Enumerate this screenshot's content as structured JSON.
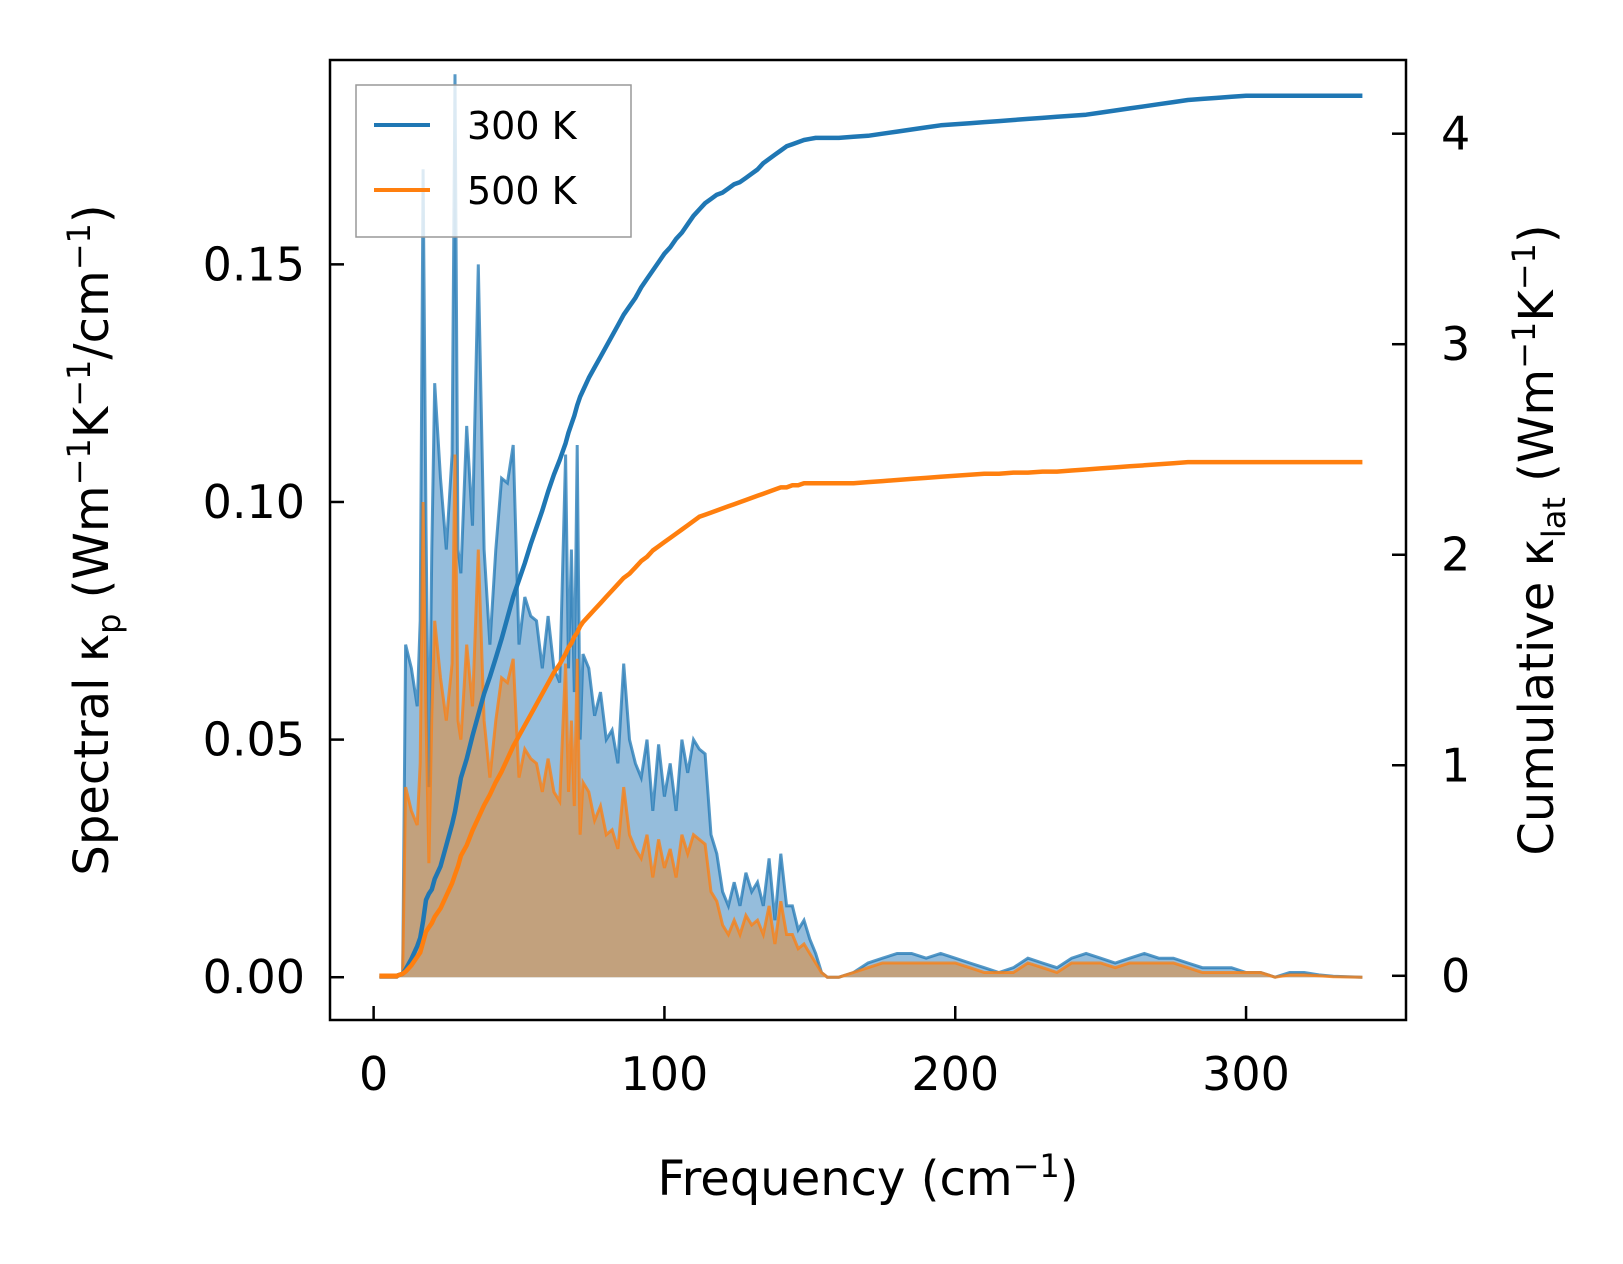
{
  "chart_data": {
    "type": "line",
    "xlabel_parts": {
      "base": "Frequency (cm",
      "sup": "−1",
      "end": ")"
    },
    "ylabel_left_parts": {
      "a": "Spectral κ",
      "sub": "p",
      "b": " (Wm",
      "sup1": "−1",
      "c": "K",
      "sup2": "−1",
      "d": "/cm",
      "sup3": "−1",
      "e": ")"
    },
    "ylabel_right_parts": {
      "a": "Cumulative κ",
      "sub": "lat",
      "b": " (Wm",
      "sup1": "−1",
      "c": "K",
      "sup2": "−1",
      "d": ")"
    },
    "xlim": [
      -15,
      355
    ],
    "ylim_left": [
      -0.009,
      0.193
    ],
    "ylim_right": [
      -0.21,
      4.35
    ],
    "x_ticks": [
      0,
      100,
      200,
      300
    ],
    "x_tick_labels": [
      "0",
      "100",
      "200",
      "300"
    ],
    "y_left_ticks": [
      0.0,
      0.05,
      0.1,
      0.15
    ],
    "y_left_tick_labels": [
      "0.00",
      "0.05",
      "0.10",
      "0.15"
    ],
    "y_right_ticks": [
      0,
      1,
      2,
      3,
      4
    ],
    "y_right_tick_labels": [
      "0",
      "1",
      "2",
      "3",
      "4"
    ],
    "legend": {
      "location": "upper-left",
      "entries": [
        "300 K",
        "500 K"
      ]
    },
    "colors": {
      "series_300K": "#1f77b4",
      "series_500K": "#ff7f0e",
      "fill_300K": "#8fb9da",
      "fill_500K": "#c69d72"
    },
    "x": [
      2,
      8,
      10,
      11,
      13,
      15,
      16,
      17,
      18,
      19,
      20,
      21,
      23,
      25,
      27,
      28,
      29,
      30,
      32,
      34,
      36,
      38,
      40,
      42,
      44,
      46,
      48,
      50,
      52,
      54,
      56,
      58,
      60,
      62,
      64,
      66,
      67,
      68,
      69,
      70,
      71,
      72,
      74,
      76,
      78,
      80,
      82,
      84,
      86,
      88,
      90,
      92,
      94,
      96,
      98,
      100,
      102,
      104,
      106,
      108,
      110,
      112,
      114,
      116,
      118,
      120,
      122,
      124,
      126,
      128,
      130,
      132,
      134,
      136,
      138,
      140,
      142,
      144,
      146,
      148,
      150,
      152,
      154,
      156,
      158,
      160,
      165,
      170,
      175,
      180,
      185,
      190,
      195,
      200,
      205,
      210,
      215,
      220,
      225,
      230,
      235,
      240,
      245,
      250,
      255,
      260,
      265,
      270,
      275,
      280,
      285,
      290,
      295,
      300,
      305,
      310,
      315,
      320,
      325,
      330,
      340
    ],
    "series": [
      {
        "name": "300 K",
        "spectral": [
          0,
          0,
          0.001,
          0.07,
          0.065,
          0.057,
          0.075,
          0.17,
          0.095,
          0.04,
          0.09,
          0.125,
          0.105,
          0.09,
          0.11,
          0.19,
          0.09,
          0.085,
          0.116,
          0.095,
          0.15,
          0.09,
          0.07,
          0.09,
          0.105,
          0.104,
          0.112,
          0.07,
          0.08,
          0.076,
          0.075,
          0.065,
          0.076,
          0.065,
          0.062,
          0.11,
          0.065,
          0.09,
          0.06,
          0.112,
          0.05,
          0.068,
          0.065,
          0.055,
          0.06,
          0.05,
          0.052,
          0.045,
          0.066,
          0.05,
          0.045,
          0.042,
          0.05,
          0.035,
          0.049,
          0.038,
          0.045,
          0.035,
          0.05,
          0.043,
          0.05,
          0.048,
          0.047,
          0.03,
          0.026,
          0.018,
          0.015,
          0.02,
          0.015,
          0.022,
          0.018,
          0.02,
          0.015,
          0.025,
          0.012,
          0.026,
          0.015,
          0.015,
          0.01,
          0.012,
          0.008,
          0.005,
          0.001,
          0.0,
          0.0,
          0.0,
          0.001,
          0.003,
          0.004,
          0.005,
          0.005,
          0.004,
          0.005,
          0.004,
          0.003,
          0.002,
          0.001,
          0.002,
          0.004,
          0.003,
          0.002,
          0.004,
          0.005,
          0.004,
          0.003,
          0.004,
          0.005,
          0.004,
          0.004,
          0.003,
          0.002,
          0.002,
          0.002,
          0.001,
          0.001,
          0.0,
          0.001,
          0.001,
          0.0005,
          0.0002,
          0.0
        ],
        "cumulative": [
          0,
          0,
          0.01,
          0.03,
          0.08,
          0.14,
          0.18,
          0.26,
          0.36,
          0.39,
          0.41,
          0.46,
          0.52,
          0.62,
          0.72,
          0.78,
          0.86,
          0.94,
          1.03,
          1.14,
          1.24,
          1.34,
          1.42,
          1.51,
          1.6,
          1.7,
          1.8,
          1.88,
          1.96,
          2.05,
          2.13,
          2.21,
          2.3,
          2.38,
          2.45,
          2.53,
          2.58,
          2.62,
          2.66,
          2.71,
          2.75,
          2.78,
          2.84,
          2.89,
          2.94,
          2.99,
          3.04,
          3.09,
          3.14,
          3.18,
          3.22,
          3.27,
          3.31,
          3.35,
          3.39,
          3.43,
          3.46,
          3.5,
          3.53,
          3.57,
          3.61,
          3.64,
          3.67,
          3.69,
          3.71,
          3.72,
          3.74,
          3.76,
          3.77,
          3.79,
          3.81,
          3.83,
          3.86,
          3.88,
          3.9,
          3.92,
          3.94,
          3.95,
          3.96,
          3.97,
          3.975,
          3.98,
          3.98,
          3.98,
          3.98,
          3.98,
          3.985,
          3.99,
          4.0,
          4.01,
          4.02,
          4.03,
          4.04,
          4.045,
          4.05,
          4.055,
          4.06,
          4.065,
          4.07,
          4.075,
          4.08,
          4.085,
          4.09,
          4.1,
          4.11,
          4.12,
          4.13,
          4.14,
          4.15,
          4.16,
          4.165,
          4.17,
          4.175,
          4.18,
          4.18,
          4.18,
          4.18,
          4.18,
          4.18,
          4.18,
          4.18
        ]
      },
      {
        "name": "500 K",
        "spectral": [
          0,
          0,
          0.001,
          0.04,
          0.035,
          0.032,
          0.045,
          0.1,
          0.055,
          0.024,
          0.055,
          0.075,
          0.063,
          0.054,
          0.066,
          0.11,
          0.054,
          0.05,
          0.07,
          0.057,
          0.09,
          0.054,
          0.042,
          0.054,
          0.063,
          0.062,
          0.067,
          0.042,
          0.048,
          0.046,
          0.045,
          0.039,
          0.046,
          0.039,
          0.037,
          0.066,
          0.039,
          0.054,
          0.036,
          0.067,
          0.03,
          0.041,
          0.039,
          0.033,
          0.036,
          0.03,
          0.031,
          0.027,
          0.04,
          0.03,
          0.027,
          0.025,
          0.03,
          0.021,
          0.029,
          0.023,
          0.027,
          0.021,
          0.03,
          0.026,
          0.03,
          0.029,
          0.028,
          0.018,
          0.016,
          0.011,
          0.009,
          0.012,
          0.009,
          0.013,
          0.011,
          0.012,
          0.009,
          0.015,
          0.007,
          0.016,
          0.009,
          0.009,
          0.006,
          0.007,
          0.005,
          0.003,
          0.001,
          0.0,
          0.0,
          0.0,
          0.001,
          0.002,
          0.003,
          0.003,
          0.003,
          0.003,
          0.003,
          0.003,
          0.002,
          0.001,
          0.001,
          0.001,
          0.003,
          0.002,
          0.001,
          0.003,
          0.003,
          0.003,
          0.002,
          0.003,
          0.003,
          0.003,
          0.003,
          0.002,
          0.001,
          0.001,
          0.001,
          0.001,
          0.001,
          0.0,
          0.0005,
          0.0005,
          0.0003,
          0.0001,
          0.0
        ],
        "cumulative": [
          0,
          0,
          0.01,
          0.02,
          0.05,
          0.09,
          0.11,
          0.16,
          0.21,
          0.23,
          0.25,
          0.28,
          0.32,
          0.38,
          0.44,
          0.48,
          0.52,
          0.57,
          0.62,
          0.69,
          0.75,
          0.81,
          0.86,
          0.92,
          0.97,
          1.03,
          1.09,
          1.14,
          1.19,
          1.24,
          1.29,
          1.34,
          1.39,
          1.44,
          1.48,
          1.53,
          1.56,
          1.58,
          1.61,
          1.63,
          1.66,
          1.68,
          1.71,
          1.74,
          1.77,
          1.8,
          1.83,
          1.86,
          1.89,
          1.91,
          1.94,
          1.97,
          1.99,
          2.02,
          2.04,
          2.06,
          2.08,
          2.1,
          2.12,
          2.14,
          2.16,
          2.18,
          2.19,
          2.2,
          2.21,
          2.22,
          2.23,
          2.24,
          2.25,
          2.26,
          2.27,
          2.28,
          2.29,
          2.3,
          2.31,
          2.32,
          2.32,
          2.33,
          2.33,
          2.34,
          2.34,
          2.34,
          2.34,
          2.34,
          2.34,
          2.34,
          2.34,
          2.345,
          2.35,
          2.355,
          2.36,
          2.365,
          2.37,
          2.375,
          2.38,
          2.385,
          2.385,
          2.39,
          2.39,
          2.395,
          2.395,
          2.4,
          2.405,
          2.41,
          2.415,
          2.42,
          2.425,
          2.43,
          2.435,
          2.44,
          2.44,
          2.44,
          2.44,
          2.44,
          2.44,
          2.44,
          2.44,
          2.44,
          2.44,
          2.44,
          2.44
        ]
      }
    ]
  }
}
